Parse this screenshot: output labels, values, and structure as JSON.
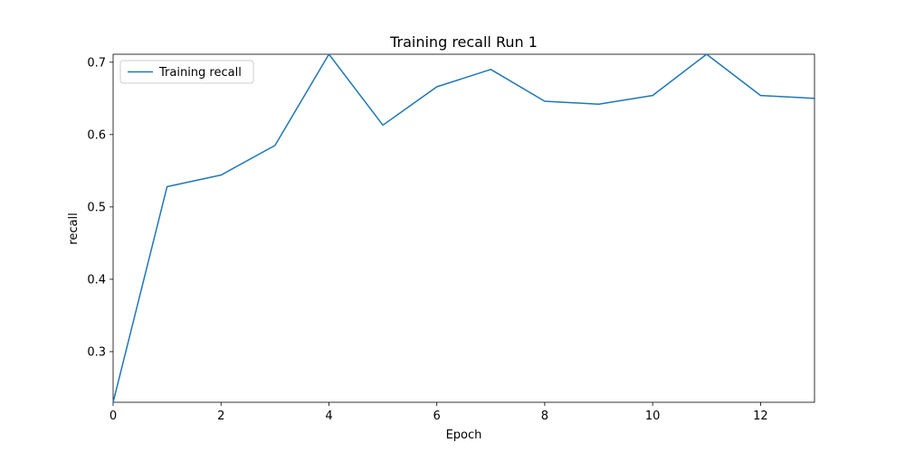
{
  "chart_data": {
    "type": "line",
    "title": "Training recall Run 1",
    "xlabel": "Epoch",
    "ylabel": "recall",
    "xlim": [
      0,
      13
    ],
    "ylim": [
      0.23,
      0.711
    ],
    "xticks": [
      0,
      2,
      4,
      6,
      8,
      10,
      12
    ],
    "yticks": [
      0.3,
      0.4,
      0.5,
      0.6,
      0.7
    ],
    "grid": false,
    "legend_position": "top-left",
    "series": [
      {
        "name": "Training recall",
        "color": "#1f77b4",
        "x": [
          0,
          1,
          2,
          3,
          4,
          5,
          6,
          7,
          8,
          9,
          10,
          11,
          12,
          13
        ],
        "values": [
          0.23,
          0.528,
          0.544,
          0.585,
          0.711,
          0.613,
          0.666,
          0.69,
          0.646,
          0.642,
          0.654,
          0.711,
          0.654,
          0.65
        ]
      }
    ]
  }
}
